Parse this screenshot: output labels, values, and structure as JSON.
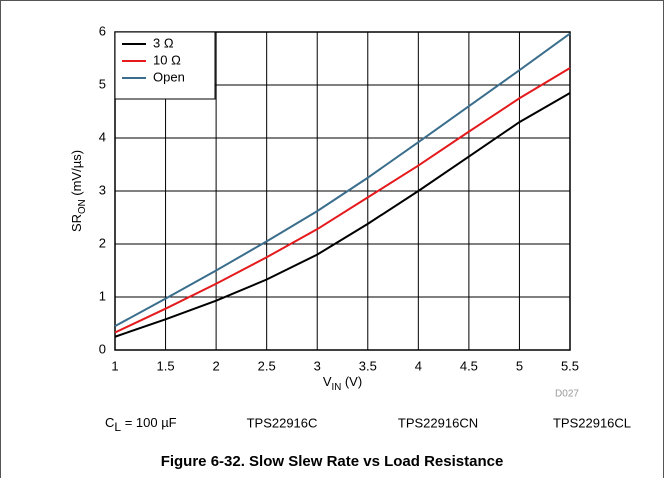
{
  "chart_data": {
    "type": "line",
    "title": "Figure 6-32. Slow Slew Rate vs Load Resistance",
    "figure_id": "D027",
    "xlabel": {
      "main": "V",
      "sub": "IN",
      "rest": " (V)"
    },
    "ylabel": {
      "main": "SR",
      "sub": "ON",
      "rest": " (mV/µs)"
    },
    "x": [
      1,
      1.5,
      2,
      2.5,
      3,
      3.5,
      4,
      4.5,
      5,
      5.5
    ],
    "series": [
      {
        "name": "3 Ω",
        "color": "#000000",
        "values": [
          0.25,
          0.58,
          0.93,
          1.33,
          1.8,
          2.38,
          3.0,
          3.65,
          4.3,
          4.85
        ]
      },
      {
        "name": "10 Ω",
        "color": "#e41a1c",
        "values": [
          0.33,
          0.78,
          1.25,
          1.75,
          2.28,
          2.88,
          3.48,
          4.12,
          4.75,
          5.32
        ]
      },
      {
        "name": "Open",
        "color": "#3a6e8c",
        "values": [
          0.45,
          0.97,
          1.5,
          2.05,
          2.62,
          3.25,
          3.92,
          4.6,
          5.28,
          5.97
        ]
      }
    ],
    "xlim": [
      1,
      5.5
    ],
    "ylim": [
      0,
      6
    ],
    "xticks": [
      1,
      1.5,
      2,
      2.5,
      3,
      3.5,
      4,
      4.5,
      5,
      5.5
    ],
    "yticks": [
      0,
      1,
      2,
      3,
      4,
      5,
      6
    ],
    "grid": true,
    "legend": "top-left",
    "caption": {
      "load": {
        "main": "C",
        "sub": "L",
        "rest": " = 100 µF"
      },
      "devices": [
        "TPS22916C",
        "TPS22916CN",
        "TPS22916CL"
      ]
    }
  }
}
